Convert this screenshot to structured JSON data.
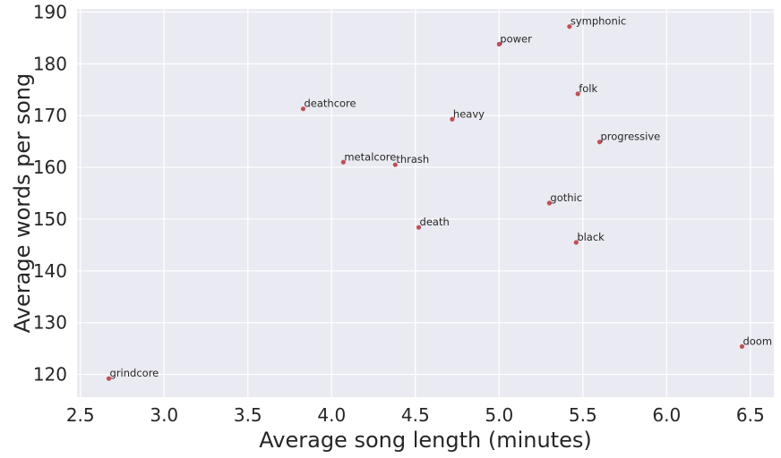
{
  "chart_data": {
    "type": "scatter",
    "xlabel": "Average song length (minutes)",
    "ylabel": "Average words per song",
    "xlim": [
      2.48,
      6.64
    ],
    "ylim": [
      115.6,
      190.6
    ],
    "xticks": [
      2.5,
      3.0,
      3.5,
      4.0,
      4.5,
      5.0,
      5.5,
      6.0,
      6.5
    ],
    "xtick_labels": [
      "2.5",
      "3.0",
      "3.5",
      "4.0",
      "4.5",
      "5.0",
      "5.5",
      "6.0",
      "6.5"
    ],
    "yticks": [
      120,
      130,
      140,
      150,
      160,
      170,
      180,
      190
    ],
    "ytick_labels": [
      "120",
      "130",
      "140",
      "150",
      "160",
      "170",
      "180",
      "190"
    ],
    "grid": true,
    "background": "#eaeaf2",
    "grid_color": "#ffffff",
    "marker_color": "#c44e52",
    "points": [
      {
        "label": "symphonic",
        "x": 5.42,
        "y": 187.2
      },
      {
        "label": "power",
        "x": 5.0,
        "y": 183.8
      },
      {
        "label": "folk",
        "x": 5.47,
        "y": 174.2
      },
      {
        "label": "deathcore",
        "x": 3.83,
        "y": 171.3
      },
      {
        "label": "heavy",
        "x": 4.72,
        "y": 169.3
      },
      {
        "label": "progressive",
        "x": 5.6,
        "y": 164.9
      },
      {
        "label": "metalcore",
        "x": 4.07,
        "y": 161.0
      },
      {
        "label": "thrash",
        "x": 4.38,
        "y": 160.5
      },
      {
        "label": "gothic",
        "x": 5.3,
        "y": 153.1
      },
      {
        "label": "death",
        "x": 4.52,
        "y": 148.4
      },
      {
        "label": "black",
        "x": 5.46,
        "y": 145.5
      },
      {
        "label": "doom",
        "x": 6.45,
        "y": 125.4
      },
      {
        "label": "grindcore",
        "x": 2.67,
        "y": 119.2
      }
    ]
  }
}
